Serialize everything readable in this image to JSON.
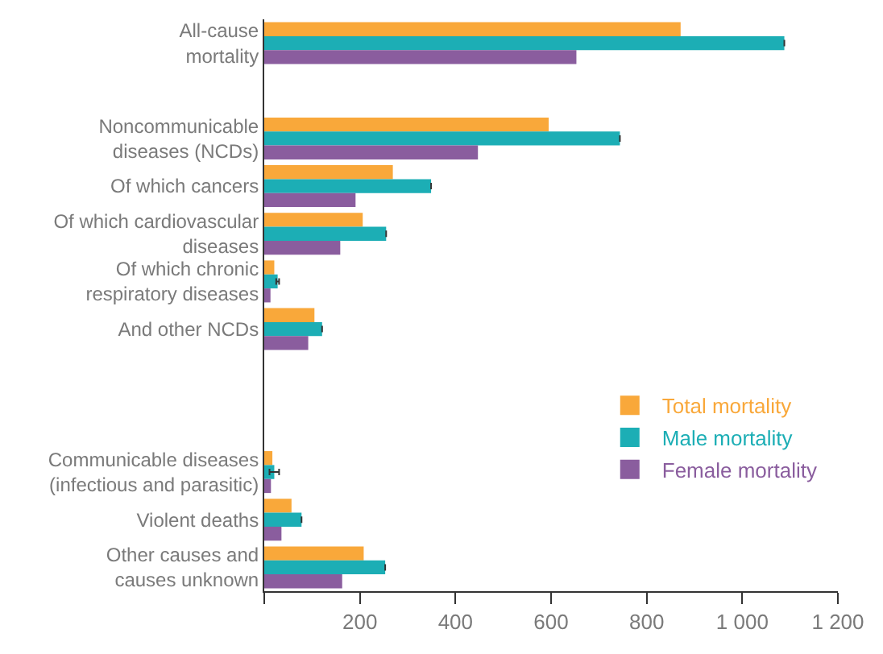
{
  "chart_data": {
    "type": "bar",
    "orientation": "horizontal",
    "categories": [
      "All-cause\nmortality",
      null,
      "Noncommunicable\ndiseases (NCDs)",
      "Of which cancers",
      "Of which cardiovascular\ndiseases",
      "Of which chronic\nrespiratory diseases",
      "And other NCDs",
      null,
      null,
      "Communicable diseases\n(infectious and parasitic)",
      "Violent deaths",
      "Other causes and\ncauses unknown"
    ],
    "series": [
      {
        "name": "Total mortality",
        "color": "#f9a83a",
        "values": [
          871,
          null,
          595,
          269,
          206,
          21,
          105,
          null,
          null,
          17,
          57,
          208
        ]
      },
      {
        "name": "Male mortality",
        "color": "#1caeb5",
        "values": [
          1088,
          null,
          744,
          349,
          255,
          28,
          121,
          null,
          null,
          21,
          78,
          253
        ],
        "errors": [
          null,
          null,
          null,
          null,
          null,
          3,
          null,
          null,
          null,
          10,
          null,
          null
        ]
      },
      {
        "name": "Female mortality",
        "color": "#8a5d9e",
        "values": [
          653,
          null,
          447,
          191,
          159,
          13,
          92,
          null,
          null,
          14,
          36,
          163
        ]
      }
    ],
    "xlim": [
      0,
      1200
    ],
    "xticks": [
      {
        "value": 0,
        "label": null
      },
      200,
      400,
      600,
      800,
      {
        "value": 1000,
        "label": "1 000"
      },
      {
        "value": 1200,
        "label": "1 200"
      }
    ],
    "grid": false,
    "legend": "bottom right"
  }
}
